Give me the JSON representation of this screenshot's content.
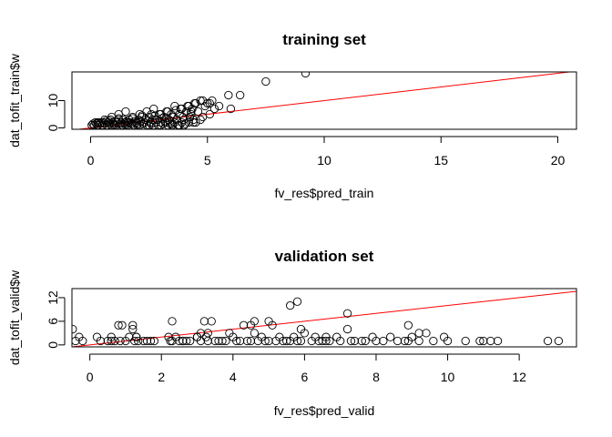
{
  "chart_data": [
    {
      "type": "scatter",
      "title": "training set",
      "xlabel": "fv_res$pred_train",
      "ylabel": "dat_tofit_train$w",
      "xlim": [
        -0.8,
        20.8
      ],
      "ylim": [
        -0.5,
        20.5
      ],
      "xticks": [
        "0",
        "5",
        "10",
        "15",
        "20"
      ],
      "xtick_values": [
        0,
        5,
        10,
        15,
        20
      ],
      "yticks": [
        "0",
        "10"
      ],
      "ytick_values": [
        0,
        10
      ],
      "grid": false,
      "line_color": "#ff0000",
      "reference_line": {
        "intercept": 0,
        "slope": 1
      },
      "x": [
        0.05,
        0.1,
        0.15,
        0.2,
        0.25,
        0.3,
        0.35,
        0.4,
        0.45,
        0.5,
        0.55,
        0.6,
        0.65,
        0.7,
        0.75,
        0.8,
        0.85,
        0.9,
        0.95,
        1.0,
        1.05,
        1.1,
        1.15,
        1.2,
        1.25,
        1.3,
        1.35,
        1.4,
        1.45,
        1.5,
        1.55,
        1.6,
        1.65,
        1.7,
        1.75,
        1.8,
        1.85,
        1.9,
        1.95,
        2.0,
        2.05,
        2.1,
        2.15,
        2.2,
        2.25,
        2.3,
        2.35,
        2.4,
        2.45,
        2.5,
        2.55,
        2.6,
        2.65,
        2.7,
        2.75,
        2.8,
        2.85,
        2.9,
        2.95,
        3.0,
        3.05,
        3.1,
        3.15,
        3.2,
        3.25,
        3.3,
        3.35,
        3.4,
        3.45,
        3.5,
        3.55,
        3.6,
        3.65,
        3.7,
        3.75,
        3.8,
        3.85,
        3.9,
        3.95,
        4.0,
        4.05,
        4.1,
        4.15,
        4.2,
        4.25,
        4.3,
        4.35,
        4.4,
        4.45,
        4.5,
        4.6,
        4.7,
        4.8,
        4.9,
        5.0,
        5.1,
        5.2,
        5.3,
        5.5,
        5.9,
        6.0,
        6.4,
        7.5,
        9.2,
        0.3,
        0.6,
        0.9,
        1.2,
        1.5,
        1.8,
        2.1,
        2.4,
        2.7,
        3.0,
        3.3,
        3.6,
        3.9,
        4.2,
        4.5,
        4.8,
        0.5,
        1.0,
        1.5,
        2.0,
        2.5,
        3.0,
        3.5,
        4.0,
        4.4,
        4.7,
        5.1,
        1.2,
        2.2,
        3.2,
        3.8,
        4.3,
        0.8,
        1.6,
        2.6,
        3.4
      ],
      "y": [
        1,
        1.5,
        1,
        2,
        1.5,
        1,
        2,
        1.5,
        2,
        1,
        2,
        1.5,
        2.5,
        1,
        2,
        1.5,
        3,
        1,
        2,
        1.5,
        2.5,
        1,
        2,
        3,
        1.5,
        2,
        1,
        3,
        2,
        1.5,
        2.5,
        1,
        3,
        2,
        1.5,
        3.5,
        1,
        2.5,
        2,
        1.5,
        3,
        1,
        2.5,
        4,
        1.5,
        2,
        3,
        1,
        2.5,
        4,
        2,
        1.5,
        3,
        1,
        4.5,
        2,
        3,
        1,
        5,
        2,
        3.5,
        1.5,
        4,
        2,
        6,
        1,
        3,
        2.5,
        5,
        1.5,
        4,
        2,
        6.5,
        3,
        1,
        5,
        7,
        2,
        4,
        3,
        1.5,
        6,
        8,
        2,
        4,
        5,
        7,
        3,
        9,
        2,
        6,
        10,
        4,
        8,
        9,
        5,
        10,
        7,
        8,
        12,
        7,
        12,
        17,
        20,
        2,
        3,
        4,
        5,
        6,
        4,
        5,
        6,
        7,
        5,
        6,
        8,
        7,
        8,
        9,
        10,
        1,
        1,
        1,
        1,
        1,
        1,
        1,
        1,
        2,
        3,
        9,
        3.5,
        4.5,
        2.5,
        1,
        6,
        2.5,
        2,
        5,
        1.5
      ]
    },
    {
      "type": "scatter",
      "title": "validation set",
      "xlabel": "fv_res$pred_valid",
      "ylabel": "dat_tofit_valid$w",
      "xlim": [
        -0.5,
        13.6
      ],
      "ylim": [
        -0.5,
        14.3
      ],
      "xticks": [
        "0",
        "2",
        "4",
        "6",
        "8",
        "10",
        "12"
      ],
      "xtick_values": [
        0,
        2,
        4,
        6,
        8,
        10,
        12
      ],
      "yticks": [
        "0",
        "6",
        "12"
      ],
      "ytick_values": [
        0,
        6,
        12
      ],
      "grid": false,
      "line_color": "#ff0000",
      "reference_line": {
        "intercept": 0,
        "slope": 1
      },
      "x": [
        -0.48,
        -0.4,
        -0.3,
        -0.2,
        0.2,
        0.3,
        0.5,
        0.6,
        0.7,
        0.8,
        0.85,
        1.0,
        1.1,
        1.2,
        1.25,
        1.3,
        1.35,
        1.5,
        1.6,
        1.7,
        1.8,
        2.2,
        2.25,
        2.3,
        2.4,
        2.5,
        2.6,
        2.7,
        2.8,
        3.0,
        3.1,
        3.2,
        3.25,
        3.3,
        3.4,
        3.5,
        3.6,
        3.7,
        3.8,
        4.0,
        4.1,
        4.2,
        4.3,
        4.4,
        4.5,
        4.6,
        4.7,
        4.8,
        4.9,
        5.0,
        5.1,
        5.2,
        5.3,
        5.4,
        5.5,
        5.6,
        5.7,
        5.8,
        5.9,
        6.0,
        6.2,
        6.3,
        6.4,
        6.5,
        6.6,
        6.7,
        6.9,
        7.0,
        7.2,
        7.3,
        7.4,
        7.6,
        7.7,
        7.9,
        8.0,
        8.2,
        8.4,
        8.6,
        8.8,
        8.9,
        9.0,
        9.2,
        9.4,
        9.6,
        9.9,
        10.0,
        10.5,
        10.9,
        11.0,
        11.2,
        11.4,
        12.8,
        13.1,
        0.9,
        1.2,
        2.3,
        3.0,
        3.1,
        3.3,
        4.6,
        5.0,
        5.9,
        7.2,
        8.9,
        5.6,
        5.8,
        4.5,
        2.6,
        1.3,
        0.6,
        3.9,
        6.6,
        9.2
      ],
      "y": [
        4,
        1,
        2,
        1,
        2,
        1,
        1,
        2,
        1,
        5,
        1,
        1,
        2,
        5,
        1,
        2,
        1,
        1,
        1,
        1,
        1,
        2,
        1,
        1,
        2,
        1,
        1,
        1,
        1,
        2,
        1,
        6,
        2,
        1,
        6,
        1,
        1,
        1,
        1,
        2,
        1,
        1,
        5,
        1,
        1,
        3,
        1,
        2,
        1,
        1,
        5,
        1,
        2,
        1,
        1,
        1,
        2,
        1,
        1,
        3,
        1,
        2,
        1,
        1,
        1,
        1,
        2,
        1,
        8,
        1,
        1,
        1,
        1,
        2,
        1,
        1,
        2,
        1,
        1,
        1,
        2,
        1,
        3,
        1,
        2,
        1,
        1,
        1,
        1,
        1,
        1,
        1,
        1,
        5,
        4,
        6,
        2,
        3,
        3,
        6,
        6,
        4,
        4,
        5,
        10,
        11,
        5,
        1,
        2,
        1,
        3,
        2,
        3
      ]
    }
  ]
}
